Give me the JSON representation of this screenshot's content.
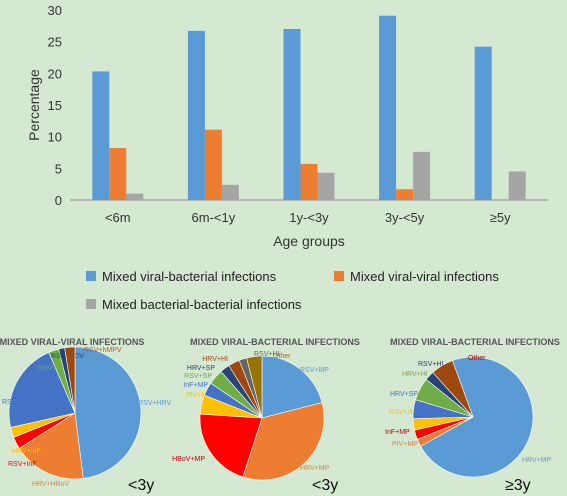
{
  "chart_data": [
    {
      "type": "bar",
      "categories": [
        "<6m",
        "6m-<1y",
        "1y-<3y",
        "3y-<5y",
        "≥5y"
      ],
      "series": [
        {
          "name": "Mixed viral-bacterial infections",
          "color": "#5b9bd5",
          "values": [
            20.3,
            26.7,
            27.0,
            29.1,
            24.2
          ]
        },
        {
          "name": "Mixed viral-viral infections",
          "color": "#ed7d31",
          "values": [
            8.2,
            11.1,
            5.7,
            1.7,
            0
          ]
        },
        {
          "name": "Mixed bacterial-bacterial infections",
          "color": "#a5a5a5",
          "values": [
            1.0,
            2.4,
            4.3,
            7.6,
            4.5
          ]
        }
      ],
      "ylim": [
        0,
        30
      ],
      "yticks": [
        "0",
        "5",
        "10",
        "15",
        "20",
        "25",
        "30"
      ],
      "xlabel": "Age groups",
      "ylabel": "Percentage",
      "grid": false,
      "legend": "bottom"
    },
    {
      "type": "pie",
      "title": "MIXED VIRAL-VIRAL INFECTIONS",
      "age_label": "<3y",
      "slices": [
        {
          "label": "RSV+HRV",
          "value": 48,
          "color": "#5b9bd5",
          "label_color": "#5b9bd5"
        },
        {
          "label": "HRV+HBoV",
          "value": 18,
          "color": "#ed7d31",
          "label_color": "#ed7d31"
        },
        {
          "label": "RSV+InF",
          "value": 3,
          "color": "#ff0000",
          "label_color": "#ff0000"
        },
        {
          "label": "HRV+InF",
          "value": 2.5,
          "color": "#ffc000",
          "label_color": "#ffc000"
        },
        {
          "label": "RSV+HBoV",
          "value": 22,
          "color": "#4472c4",
          "label_color": "#4472c4"
        },
        {
          "label": "RSV+PIV",
          "value": 2.5,
          "color": "#70ad47",
          "label_color": "#70ad47"
        },
        {
          "label": "RSV+ADV",
          "value": 1.5,
          "color": "#264478",
          "label_color": "#264478"
        },
        {
          "label": "RSV+hMPV",
          "value": 2.5,
          "color": "#9e480e",
          "label_color": "#c55a11"
        }
      ]
    },
    {
      "type": "pie",
      "title": "MIXED VIRAL-BACTERIAL INFECTIONS",
      "age_label": "<3y",
      "slices": [
        {
          "label": "RSV+MP",
          "value": 21,
          "color": "#5b9bd5",
          "label_color": "#5b9bd5"
        },
        {
          "label": "HRV+MP",
          "value": 34,
          "color": "#ed7d31",
          "label_color": "#ed7d31"
        },
        {
          "label": "HBoV+MP",
          "value": 21,
          "color": "#ff0000",
          "label_color": "#c00000"
        },
        {
          "label": "PIV+MP",
          "value": 5,
          "color": "#ffc000",
          "label_color": "#ffc000"
        },
        {
          "label": "InF+MP",
          "value": 3.5,
          "color": "#4472c4",
          "label_color": "#4472c4"
        },
        {
          "label": "RSV+SP",
          "value": 4,
          "color": "#70ad47",
          "label_color": "#70ad47"
        },
        {
          "label": "HRV+SP",
          "value": 2.5,
          "color": "#264478",
          "label_color": "#264478"
        },
        {
          "label": "HRV+HI",
          "value": 3,
          "color": "#9e480e",
          "label_color": "#9e480e"
        },
        {
          "label": "RSV+HI",
          "value": 2,
          "color": "#636363",
          "label_color": "#636363"
        },
        {
          "label": "Other",
          "value": 4,
          "color": "#997300",
          "label_color": "#997300"
        }
      ]
    },
    {
      "type": "pie",
      "title": "MIXED VIRAL-BACTERIAL INFECTIONS",
      "age_label": "≥3y",
      "slices": [
        {
          "label": "HRV+MP",
          "value": 71,
          "color": "#5b9bd5",
          "label_color": "#5b9bd5"
        },
        {
          "label": "PIV+MP",
          "value": 2,
          "color": "#ed7d31",
          "label_color": "#ed7d31"
        },
        {
          "label": "InF+MP",
          "value": 2.5,
          "color": "#ff0000",
          "label_color": "#c00000"
        },
        {
          "label": "RSV+SP",
          "value": 3,
          "color": "#ffc000",
          "label_color": "#ffc000"
        },
        {
          "label": "HRV+SP",
          "value": 5,
          "color": "#4472c4",
          "label_color": "#4472c4"
        },
        {
          "label": "HRV+HI",
          "value": 6,
          "color": "#70ad47",
          "label_color": "#70ad47"
        },
        {
          "label": "RSV+HI",
          "value": 2.5,
          "color": "#264478",
          "label_color": "#264478"
        },
        {
          "label": "Other",
          "value": 6,
          "color": "#9e480e",
          "label_color": "#c00000"
        }
      ]
    }
  ]
}
